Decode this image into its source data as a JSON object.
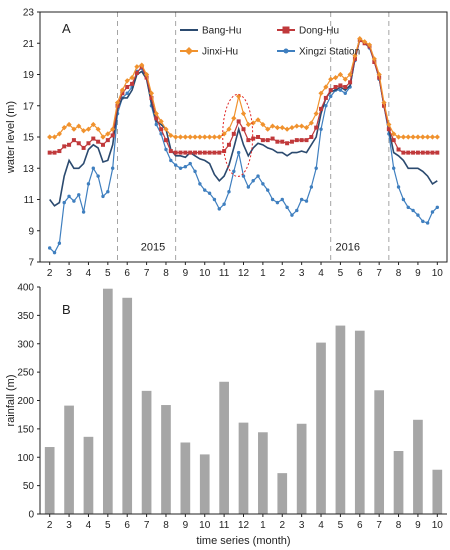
{
  "chart_data": [
    {
      "panel": "A",
      "type": "line",
      "ylabel": "water level (m)",
      "ylim": [
        7,
        23
      ],
      "yticks": [
        7,
        9,
        11,
        13,
        15,
        17,
        19,
        21,
        23
      ],
      "month_ticks": [
        "2",
        "3",
        "4",
        "5",
        "6",
        "7",
        "8",
        "9",
        "10",
        "11",
        "12",
        "1",
        "2",
        "3",
        "4",
        "5",
        "6",
        "7",
        "8",
        "9",
        "10"
      ],
      "year_labels": [
        "2015",
        "2016"
      ],
      "legend_position": "top-right",
      "series": [
        {
          "name": "Bang-Hu",
          "color": "#2b4a6f",
          "marker": "line",
          "x": [
            1.0,
            1.25,
            1.5,
            1.75,
            2.0,
            2.25,
            2.5,
            2.75,
            3.0,
            3.25,
            3.5,
            3.75,
            4.0,
            4.25,
            4.5,
            4.75,
            5.0,
            5.25,
            5.5,
            5.75,
            6.0,
            6.25,
            6.5,
            6.75,
            7.0,
            7.25,
            7.5,
            7.75,
            8.0,
            8.25,
            8.5,
            8.75,
            9.0,
            9.25,
            9.5,
            9.75,
            10.0,
            10.25,
            10.5,
            10.75,
            11.0,
            11.25,
            11.5,
            11.75,
            12.0,
            12.25,
            12.5,
            12.75,
            13.0,
            13.25,
            13.5,
            13.75,
            14.0,
            14.25,
            14.5,
            14.75,
            15.0,
            15.25,
            15.5,
            15.75,
            16.0,
            16.25,
            16.5,
            16.75,
            17.0,
            17.25,
            17.5,
            17.75,
            18.0,
            18.25,
            18.5,
            18.75,
            19.0,
            19.25,
            19.5,
            19.75,
            20.0,
            20.25,
            20.5,
            20.75,
            21.0
          ],
          "y": [
            11.0,
            10.6,
            10.8,
            12.5,
            13.5,
            13.0,
            13.0,
            13.3,
            14.2,
            14.5,
            14.3,
            13.4,
            13.5,
            14.5,
            16.8,
            17.5,
            17.5,
            18.0,
            19.0,
            19.2,
            18.7,
            17.2,
            16.0,
            15.8,
            15.5,
            14.2,
            13.8,
            13.8,
            13.7,
            14.0,
            13.8,
            13.6,
            13.5,
            13.3,
            12.6,
            12.2,
            12.5,
            13.2,
            14.3,
            15.5,
            14.5,
            13.8,
            14.3,
            14.6,
            14.5,
            14.3,
            14.2,
            14.0,
            14.0,
            13.8,
            14.0,
            14.0,
            14.1,
            14.0,
            14.5,
            15.0,
            16.5,
            17.5,
            17.9,
            18.0,
            18.2,
            18.0,
            18.3,
            20.0,
            21.3,
            21.0,
            20.8,
            19.9,
            18.8,
            17.0,
            15.5,
            14.0,
            13.8,
            13.5,
            13.0,
            13.0,
            13.0,
            12.8,
            12.5,
            12.0,
            12.2
          ]
        },
        {
          "name": "Dong-Hu",
          "color": "#c0393b",
          "marker": "square",
          "x": [
            1.0,
            1.25,
            1.5,
            1.75,
            2.0,
            2.25,
            2.5,
            2.75,
            3.0,
            3.25,
            3.5,
            3.75,
            4.0,
            4.25,
            4.5,
            4.75,
            5.0,
            5.25,
            5.5,
            5.75,
            6.0,
            6.25,
            6.5,
            6.75,
            7.0,
            7.25,
            7.5,
            7.75,
            8.0,
            8.25,
            8.5,
            8.75,
            9.0,
            9.25,
            9.5,
            9.75,
            10.0,
            10.25,
            10.5,
            10.75,
            11.0,
            11.25,
            11.5,
            11.75,
            12.0,
            12.25,
            12.5,
            12.75,
            13.0,
            13.25,
            13.5,
            13.75,
            14.0,
            14.25,
            14.5,
            14.75,
            15.0,
            15.25,
            15.5,
            15.75,
            16.0,
            16.25,
            16.5,
            16.75,
            17.0,
            17.25,
            17.5,
            17.75,
            18.0,
            18.25,
            18.5,
            18.75,
            19.0,
            19.25,
            19.5,
            19.75,
            20.0,
            20.25,
            20.5,
            20.75,
            21.0
          ],
          "y": [
            14.0,
            14.0,
            14.1,
            14.4,
            14.5,
            14.8,
            14.6,
            14.3,
            14.6,
            14.9,
            14.7,
            14.5,
            14.8,
            15.1,
            17.0,
            17.8,
            18.2,
            18.4,
            19.1,
            19.5,
            18.8,
            17.5,
            16.2,
            15.5,
            14.8,
            14.1,
            14.0,
            14.0,
            14.0,
            14.0,
            14.0,
            14.0,
            14.0,
            14.0,
            14.0,
            14.0,
            14.1,
            14.5,
            15.2,
            16.0,
            15.5,
            14.8,
            14.9,
            15.0,
            14.8,
            14.8,
            14.9,
            14.7,
            14.7,
            14.6,
            14.7,
            14.8,
            14.8,
            14.8,
            15.0,
            15.6,
            16.8,
            17.5,
            18.0,
            18.2,
            18.3,
            18.2,
            18.5,
            20.0,
            21.2,
            21.0,
            20.8,
            19.8,
            18.8,
            17.0,
            15.5,
            14.8,
            14.2,
            14.0,
            14.0,
            14.0,
            14.0,
            14.0,
            14.0,
            14.0,
            14.0
          ]
        },
        {
          "name": "Jinxi-Hu",
          "color": "#f0922e",
          "marker": "diamond",
          "x": [
            1.0,
            1.25,
            1.5,
            1.75,
            2.0,
            2.25,
            2.5,
            2.75,
            3.0,
            3.25,
            3.5,
            3.75,
            4.0,
            4.25,
            4.5,
            4.75,
            5.0,
            5.25,
            5.5,
            5.75,
            6.0,
            6.25,
            6.5,
            6.75,
            7.0,
            7.25,
            7.5,
            7.75,
            8.0,
            8.25,
            8.5,
            8.75,
            9.0,
            9.25,
            9.5,
            9.75,
            10.0,
            10.25,
            10.5,
            10.75,
            11.0,
            11.25,
            11.5,
            11.75,
            12.0,
            12.25,
            12.5,
            12.75,
            13.0,
            13.25,
            13.5,
            13.75,
            14.0,
            14.25,
            14.5,
            14.75,
            15.0,
            15.25,
            15.5,
            15.75,
            16.0,
            16.25,
            16.5,
            16.75,
            17.0,
            17.25,
            17.5,
            17.75,
            18.0,
            18.25,
            18.5,
            18.75,
            19.0,
            19.25,
            19.5,
            19.75,
            20.0,
            20.25,
            20.5,
            20.75,
            21.0
          ],
          "y": [
            15.0,
            15.0,
            15.2,
            15.6,
            15.8,
            15.5,
            15.7,
            15.4,
            15.5,
            15.8,
            15.5,
            15.0,
            15.2,
            15.5,
            17.2,
            18.0,
            18.6,
            18.8,
            19.5,
            19.6,
            19.0,
            17.8,
            16.5,
            16.0,
            15.5,
            15.1,
            15.0,
            15.0,
            15.0,
            15.0,
            15.0,
            15.0,
            15.0,
            15.0,
            15.0,
            15.0,
            15.2,
            15.5,
            16.2,
            17.6,
            16.5,
            15.8,
            15.9,
            16.1,
            15.8,
            15.5,
            15.7,
            15.6,
            15.6,
            15.5,
            15.6,
            15.7,
            15.7,
            15.6,
            15.9,
            16.5,
            17.8,
            18.2,
            18.7,
            18.8,
            19.0,
            18.7,
            19.0,
            20.2,
            21.3,
            21.1,
            20.9,
            20.0,
            19.0,
            17.2,
            15.8,
            15.2,
            15.0,
            15.0,
            15.0,
            15.0,
            15.0,
            15.0,
            15.0,
            15.0,
            15.0
          ]
        },
        {
          "name": "Xingzi Station",
          "color": "#3f7fbf",
          "marker": "dot",
          "x": [
            1.0,
            1.25,
            1.5,
            1.75,
            2.0,
            2.25,
            2.5,
            2.75,
            3.0,
            3.25,
            3.5,
            3.75,
            4.0,
            4.25,
            4.5,
            4.75,
            5.0,
            5.25,
            5.5,
            5.75,
            6.0,
            6.25,
            6.5,
            6.75,
            7.0,
            7.25,
            7.5,
            7.75,
            8.0,
            8.25,
            8.5,
            8.75,
            9.0,
            9.25,
            9.5,
            9.75,
            10.0,
            10.25,
            10.5,
            10.75,
            11.0,
            11.25,
            11.5,
            11.75,
            12.0,
            12.25,
            12.5,
            12.75,
            13.0,
            13.25,
            13.5,
            13.75,
            14.0,
            14.25,
            14.5,
            14.75,
            15.0,
            15.25,
            15.5,
            15.75,
            16.0,
            16.25,
            16.5,
            16.75,
            17.0,
            17.25,
            17.5,
            17.75,
            18.0,
            18.25,
            18.5,
            18.75,
            19.0,
            19.25,
            19.5,
            19.75,
            20.0,
            20.25,
            20.5,
            20.75,
            21.0
          ],
          "y": [
            7.9,
            7.6,
            8.2,
            10.8,
            11.2,
            10.9,
            11.3,
            10.2,
            12.0,
            13.0,
            12.5,
            11.2,
            11.5,
            13.0,
            16.5,
            17.5,
            17.8,
            18.2,
            19.2,
            19.4,
            18.8,
            17.0,
            15.8,
            15.2,
            14.2,
            13.5,
            13.2,
            13.0,
            13.1,
            13.3,
            12.8,
            12.0,
            11.6,
            11.4,
            11.0,
            10.4,
            10.7,
            11.5,
            12.8,
            14.0,
            12.5,
            11.8,
            12.2,
            12.5,
            12.0,
            11.6,
            11.0,
            10.8,
            11.0,
            10.5,
            10.0,
            10.3,
            11.0,
            10.9,
            11.8,
            13.0,
            15.5,
            17.0,
            17.6,
            18.0,
            18.0,
            17.8,
            18.2,
            19.9,
            21.2,
            21.0,
            20.7,
            19.8,
            18.7,
            17.0,
            15.2,
            13.0,
            11.8,
            11.0,
            10.5,
            10.3,
            10.0,
            9.6,
            9.5,
            10.2,
            10.5
          ]
        }
      ]
    },
    {
      "panel": "B",
      "type": "bar",
      "ylabel": "rainfall (m)",
      "xlabel": "time series (month)",
      "ylim": [
        0,
        400
      ],
      "yticks": [
        0,
        50,
        100,
        150,
        200,
        250,
        300,
        350,
        400
      ],
      "bar_color": "#a6a6a6",
      "categories": [
        "2",
        "3",
        "4",
        "5",
        "6",
        "7",
        "8",
        "9",
        "10",
        "11",
        "12",
        "1",
        "2",
        "3",
        "4",
        "5",
        "6",
        "7",
        "8",
        "9",
        "10"
      ],
      "values": [
        118,
        191,
        136,
        397,
        381,
        217,
        192,
        126,
        105,
        233,
        161,
        144,
        72,
        159,
        302,
        332,
        323,
        218,
        111,
        166,
        78
      ]
    }
  ]
}
